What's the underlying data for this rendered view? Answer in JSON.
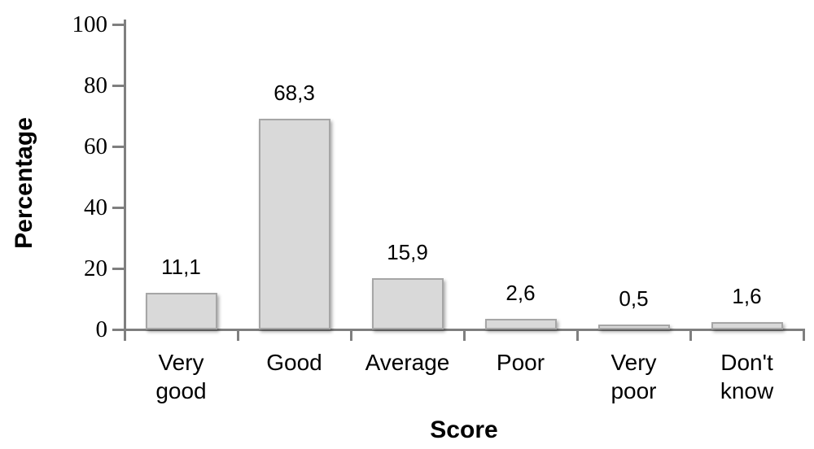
{
  "chart_data": {
    "type": "bar",
    "title": "",
    "xlabel": "Score",
    "ylabel": "Percentage",
    "categories": [
      "Very good",
      "Good",
      "Average",
      "Poor",
      "Very poor",
      "Don't know"
    ],
    "categories_display": [
      [
        "Very",
        "good"
      ],
      [
        "Good"
      ],
      [
        "Average"
      ],
      [
        "Poor"
      ],
      [
        "Very",
        "poor"
      ],
      [
        "Don't",
        "know"
      ]
    ],
    "values": [
      11.1,
      68.3,
      15.9,
      2.6,
      0.5,
      1.6
    ],
    "value_labels": [
      "11,1",
      "68,3",
      "15,9",
      "2,6",
      "0,5",
      "1,6"
    ],
    "yticks": [
      0,
      20,
      40,
      60,
      80,
      100
    ],
    "ylim": [
      0,
      100
    ],
    "grid": false,
    "legend": null,
    "decimal_separator": ",",
    "colors": {
      "bar_fill": "#d9d9d9",
      "bar_border": "#a6a6a6",
      "axis": "#7f7f7f",
      "text": "#000000"
    }
  }
}
